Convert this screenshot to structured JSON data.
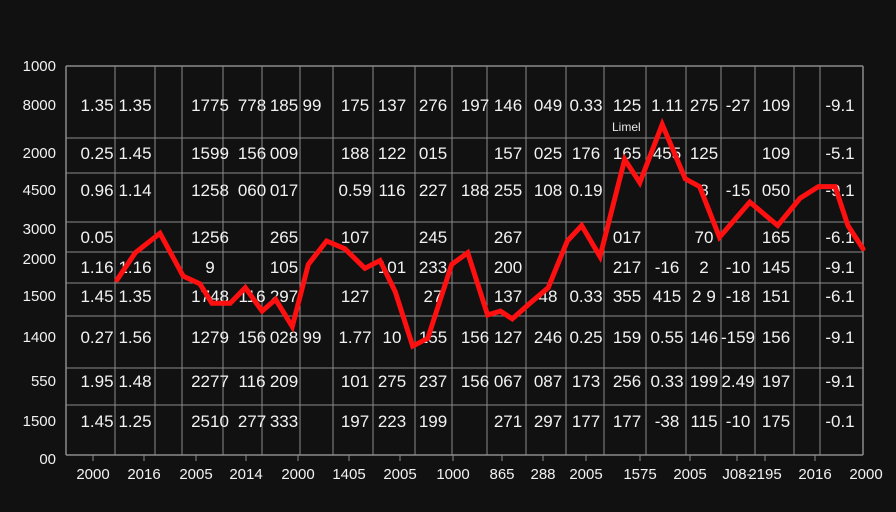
{
  "chart_data": {
    "type": "line",
    "title": "",
    "annotation": "Limel",
    "y_tick_labels": {
      "top": "1000",
      "rows": [
        "8000",
        "2000",
        "4500",
        "3000",
        "2000",
        "1500",
        "1400",
        "550",
        "1500"
      ],
      "bottom": "00"
    },
    "x_tick_labels": [
      "2000",
      "2016",
      "2005",
      "2014",
      "2000",
      "1405",
      "2005",
      "1000",
      "865",
      "288",
      "2005",
      "1575",
      "2005",
      "J08-",
      "2195",
      "2016",
      "2000"
    ],
    "colors": {
      "line": "#ff1010",
      "w": "#f2f2f2",
      "y": "#f2e21a",
      "c": "#2ec4d6",
      "g": "#3ddc3a",
      "grid": "#8a8a8a",
      "background": "#111111"
    },
    "table_rows": [
      [
        [
          "1.35",
          "w"
        ],
        [
          "1.35",
          "w"
        ],
        [
          "1775",
          "w"
        ],
        [
          "778",
          "w"
        ],
        [
          "185",
          "w"
        ],
        [
          "99",
          "w"
        ],
        [
          "175",
          "w"
        ],
        [
          "137",
          "w"
        ],
        [
          "276",
          "w"
        ],
        [
          "197",
          "w"
        ],
        [
          "146",
          "w"
        ],
        [
          "049",
          "w"
        ],
        [
          "0.33",
          "w"
        ],
        [
          "125",
          "w"
        ],
        [
          "1.11",
          "c"
        ],
        [
          "275",
          "w"
        ],
        [
          "-27",
          "g"
        ],
        [
          "109",
          "w"
        ],
        [
          "-9.1",
          "w"
        ]
      ],
      [
        [
          "0.25",
          "w"
        ],
        [
          "1.45",
          "w"
        ],
        [
          "1599",
          "w"
        ],
        [
          "156",
          "w"
        ],
        [
          "009",
          "w"
        ],
        [
          "",
          ""
        ],
        [
          "188",
          "w"
        ],
        [
          "122",
          "w"
        ],
        [
          "015",
          "w"
        ],
        [
          "",
          ""
        ],
        [
          "157",
          "w"
        ],
        [
          "025",
          "w"
        ],
        [
          "176",
          "w"
        ],
        [
          "165",
          "y"
        ],
        [
          "455",
          "c"
        ],
        [
          "125",
          "w"
        ],
        [
          "",
          ""
        ],
        [
          "109",
          "w"
        ],
        [
          "-5.1",
          "w"
        ]
      ],
      [
        [
          "0.96",
          "w"
        ],
        [
          "1.14",
          "w"
        ],
        [
          "1258",
          "w"
        ],
        [
          "060",
          "w"
        ],
        [
          "017",
          "w"
        ],
        [
          "",
          ""
        ],
        [
          "0.59",
          "w"
        ],
        [
          "116",
          "w"
        ],
        [
          "227",
          "w"
        ],
        [
          "188",
          "w"
        ],
        [
          "255",
          "w"
        ],
        [
          "108",
          "w"
        ],
        [
          "0.19",
          "w"
        ],
        [
          "",
          ""
        ],
        [
          "",
          ""
        ],
        [
          "8",
          "w"
        ],
        [
          "-15",
          "w"
        ],
        [
          "050",
          "w"
        ],
        [
          "-9.1",
          "w"
        ]
      ],
      [
        [
          "0.05",
          "w"
        ],
        [
          "",
          ""
        ],
        [
          "1256",
          "w"
        ],
        [
          "",
          ""
        ],
        [
          "265",
          "w"
        ],
        [
          "",
          ""
        ],
        [
          "107",
          "w"
        ],
        [
          "",
          ""
        ],
        [
          "245",
          "w"
        ],
        [
          "",
          ""
        ],
        [
          "267",
          "w"
        ],
        [
          "",
          ""
        ],
        [
          "",
          ""
        ],
        [
          "017",
          "w"
        ],
        [
          "",
          ""
        ],
        [
          "70",
          "c"
        ],
        [
          "",
          ""
        ],
        [
          "165",
          "w"
        ],
        [
          "-6.1",
          "w"
        ]
      ],
      [
        [
          "1.16",
          "w"
        ],
        [
          "1.16",
          "w"
        ],
        [
          "9",
          "w"
        ],
        [
          "",
          ""
        ],
        [
          "105",
          "w"
        ],
        [
          "",
          ""
        ],
        [
          "",
          ""
        ],
        [
          "101",
          "w"
        ],
        [
          "233",
          "w"
        ],
        [
          "",
          ""
        ],
        [
          "200",
          "w"
        ],
        [
          "",
          ""
        ],
        [
          "",
          ""
        ],
        [
          "217",
          "c"
        ],
        [
          "-16",
          "c"
        ],
        [
          "2",
          "c"
        ],
        [
          "-10",
          "c"
        ],
        [
          "145",
          "w"
        ],
        [
          "-9.1",
          "w"
        ]
      ],
      [
        [
          "1.45",
          "w"
        ],
        [
          "1.35",
          "w"
        ],
        [
          "1748",
          "w"
        ],
        [
          "116",
          "w"
        ],
        [
          "297",
          "w"
        ],
        [
          "",
          ""
        ],
        [
          "127",
          "w"
        ],
        [
          "",
          ""
        ],
        [
          "27",
          "w"
        ],
        [
          "",
          ""
        ],
        [
          "137",
          "w"
        ],
        [
          "48",
          "w"
        ],
        [
          "0.33",
          "w"
        ],
        [
          "355",
          "w"
        ],
        [
          "415",
          "c"
        ],
        [
          "2 9",
          "c"
        ],
        [
          "-18",
          "g"
        ],
        [
          "151",
          "w"
        ],
        [
          "-6.1",
          "w"
        ]
      ],
      [
        [
          "0.27",
          "w"
        ],
        [
          "1.56",
          "w"
        ],
        [
          "1279",
          "w"
        ],
        [
          "156",
          "w"
        ],
        [
          "028",
          "w"
        ],
        [
          "99",
          "w"
        ],
        [
          "1.77",
          "w"
        ],
        [
          "10",
          "w"
        ],
        [
          "155",
          "w"
        ],
        [
          "156",
          "w"
        ],
        [
          "127",
          "w"
        ],
        [
          "246",
          "w"
        ],
        [
          "0.25",
          "w"
        ],
        [
          "159",
          "w"
        ],
        [
          "0.55",
          "y"
        ],
        [
          "146",
          "w"
        ],
        [
          "-159",
          "y"
        ],
        [
          "156",
          "w"
        ],
        [
          "-9.1",
          "w"
        ]
      ],
      [
        [
          "1.95",
          "w"
        ],
        [
          "1.48",
          "w"
        ],
        [
          "2277",
          "w"
        ],
        [
          "116",
          "w"
        ],
        [
          "209",
          "w"
        ],
        [
          "",
          ""
        ],
        [
          "101",
          "w"
        ],
        [
          "275",
          "w"
        ],
        [
          "237",
          "w"
        ],
        [
          "156",
          "y"
        ],
        [
          "067",
          "w"
        ],
        [
          "087",
          "w"
        ],
        [
          "173",
          "w"
        ],
        [
          "256",
          "w"
        ],
        [
          "0.33",
          "y"
        ],
        [
          "199",
          "y"
        ],
        [
          "2.49",
          "y"
        ],
        [
          "197",
          "w"
        ],
        [
          "-9.1",
          "w"
        ]
      ],
      [
        [
          "1.45",
          "w"
        ],
        [
          "1.25",
          "w"
        ],
        [
          "2510",
          "w"
        ],
        [
          "277",
          "w"
        ],
        [
          "333",
          "w"
        ],
        [
          "",
          ""
        ],
        [
          "197",
          "w"
        ],
        [
          "223",
          "w"
        ],
        [
          "199",
          "w"
        ],
        [
          "",
          ""
        ],
        [
          "271",
          "w"
        ],
        [
          "297",
          "w"
        ],
        [
          "177",
          "w"
        ],
        [
          "177",
          "w"
        ],
        [
          "-38",
          "c"
        ],
        [
          "115",
          "c"
        ],
        [
          "-10",
          "c"
        ],
        [
          "175",
          "w"
        ],
        [
          "-0.1",
          "w"
        ]
      ]
    ],
    "series": [
      {
        "name": "Limel",
        "x": [
          6.4,
          8.7,
          11.8,
          14.7,
          16.8,
          18.3,
          20.6,
          22.5,
          24.6,
          26.3,
          28.4,
          30.4,
          32.7,
          35,
          37.5,
          39.4,
          41.3,
          43.5,
          45.4,
          48.4,
          50.4,
          52.9,
          54.5,
          56,
          58.2,
          60.5,
          62.9,
          64.7,
          67,
          70.1,
          72,
          74.8,
          77.7,
          79.5,
          82,
          85.8,
          89.3,
          92.1,
          94.4,
          96.5,
          98.1,
          100
        ],
        "y": [
          45,
          52,
          57,
          46,
          44,
          39,
          39,
          43,
          37,
          40,
          33,
          49,
          55,
          53,
          48,
          50,
          42,
          28,
          30,
          49,
          52,
          36,
          37,
          35,
          39,
          43,
          55,
          59,
          51,
          76,
          70,
          85,
          71,
          69,
          56,
          65,
          59,
          66,
          69,
          69,
          59,
          53
        ]
      }
    ],
    "xlim": [
      0,
      100
    ],
    "ylim": [
      0,
      100
    ],
    "grid": true
  }
}
